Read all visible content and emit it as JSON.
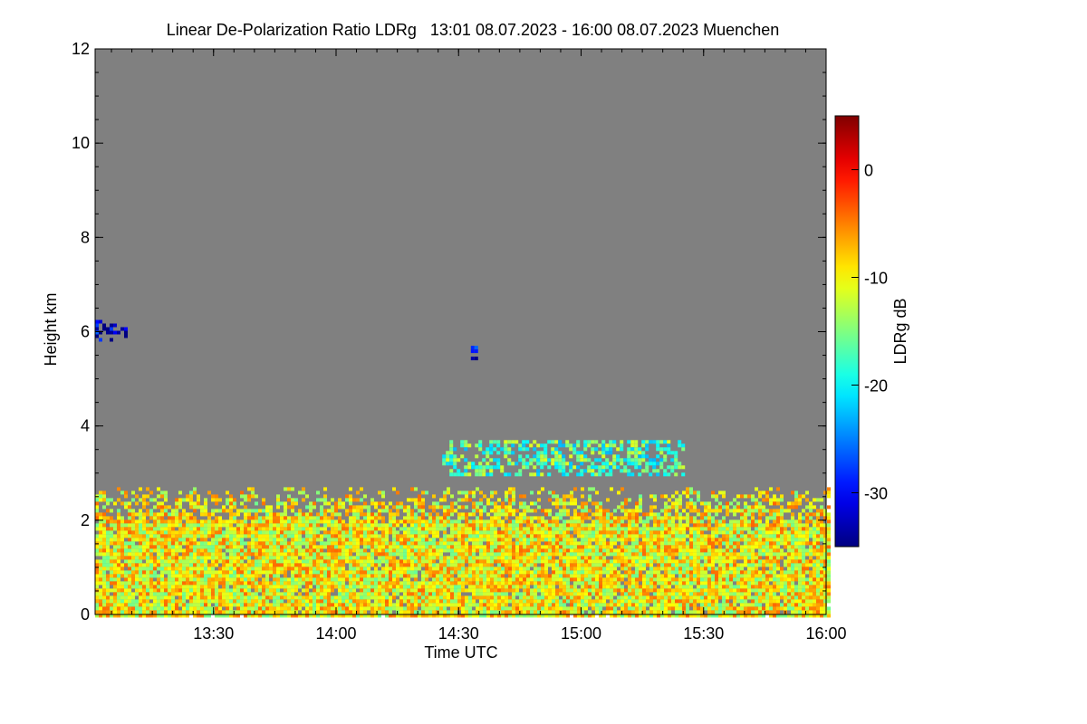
{
  "chart_data": {
    "type": "heatmap",
    "title": "Linear De-Polarization Ratio LDRg   13:01 08.07.2023 - 16:00 08.07.2023 Muenchen",
    "xlabel": "Time UTC",
    "ylabel": "Height km",
    "xlim": [
      "13:01",
      "16:00"
    ],
    "ylim": [
      0,
      12
    ],
    "x_ticks": [
      "13:30",
      "14:00",
      "14:30",
      "15:00",
      "15:30",
      "16:00"
    ],
    "y_ticks": [
      "0",
      "2",
      "4",
      "6",
      "8",
      "10",
      "12"
    ],
    "grid": false,
    "background_color": "#808080",
    "colorbar": {
      "label": "LDRg dB",
      "range": [
        -35,
        5
      ],
      "ticks": [
        "0",
        "-10",
        "-20",
        "-30"
      ],
      "colormap": "jet"
    },
    "features": [
      {
        "description": "boundary layer",
        "time_start": "13:01",
        "time_end": "16:00",
        "height_min_km": 0,
        "height_max_km": 2.7,
        "ldr_db_typical": -10
      },
      {
        "description": "low-depolarization patch",
        "time_start": "13:01",
        "time_end": "13:08",
        "height_min_km": 5.8,
        "height_max_km": 6.25,
        "ldr_db_typical": -32
      },
      {
        "description": "low-depolarization patch",
        "time_start": "14:33",
        "time_end": "14:34",
        "height_min_km": 5.4,
        "height_max_km": 5.7,
        "ldr_db_typical": -32
      },
      {
        "description": "cloud",
        "time_start": "14:26",
        "time_end": "15:25",
        "height_min_km": 3.0,
        "height_max_km": 3.7,
        "ldr_db_typical": -17
      }
    ]
  }
}
